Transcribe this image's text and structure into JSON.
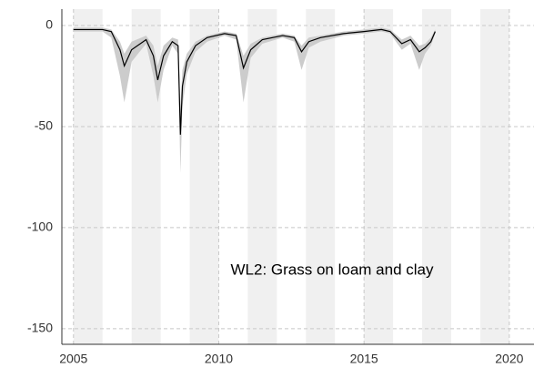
{
  "chart_data": {
    "type": "line",
    "annotation": "WL2: Grass on loam and clay",
    "x": [
      2005.0,
      2006.0,
      2006.3,
      2006.6,
      2006.75,
      2007.0,
      2007.5,
      2007.75,
      2007.9,
      2008.1,
      2008.4,
      2008.6,
      2008.68,
      2008.75,
      2008.9,
      2009.2,
      2009.6,
      2010.2,
      2010.6,
      2010.85,
      2011.1,
      2011.5,
      2012.2,
      2012.6,
      2012.85,
      2013.1,
      2013.5,
      2014.3,
      2015.0,
      2015.6,
      2015.9,
      2016.3,
      2016.6,
      2016.9,
      2017.1,
      2017.3,
      2017.45
    ],
    "series": [
      {
        "color": "#000000",
        "values": [
          -2,
          -2,
          -3,
          -12,
          -20,
          -12,
          -7,
          -15,
          -27,
          -15,
          -8,
          -10,
          -54,
          -30,
          -18,
          -10,
          -6,
          -4,
          -5,
          -21,
          -12,
          -7,
          -5,
          -6,
          -13,
          -8,
          -6,
          -4,
          -3,
          -2,
          -3,
          -9,
          -7,
          -13,
          -11,
          -8,
          -3
        ]
      }
    ],
    "band": {
      "color": "#cccccc",
      "lower": [
        -3,
        -3,
        -6,
        -25,
        -38,
        -18,
        -9,
        -25,
        -38,
        -22,
        -10,
        -14,
        -73,
        -40,
        -24,
        -13,
        -8,
        -5,
        -7,
        -38,
        -16,
        -9,
        -6,
        -8,
        -22,
        -11,
        -8,
        -5,
        -4,
        -3,
        -4,
        -12,
        -9,
        -22,
        -14,
        -10,
        -4
      ],
      "upper": [
        -1,
        -1,
        -2,
        -8,
        -14,
        -8,
        -5,
        -10,
        -20,
        -10,
        -6,
        -7,
        -40,
        -22,
        -14,
        -8,
        -5,
        -3,
        -4,
        -15,
        -9,
        -6,
        -4,
        -5,
        -10,
        -6,
        -5,
        -3,
        -2,
        -1,
        -2,
        -7,
        -5,
        -10,
        -9,
        -6,
        -2
      ]
    },
    "shaded_years": [
      2005,
      2007,
      2009,
      2011,
      2013,
      2015,
      2017,
      2019
    ],
    "shade_color": "#f0f0f0",
    "xlim": [
      2004.6,
      2020.85
    ],
    "xticks": [
      2005,
      2010,
      2015,
      2020
    ],
    "ylim": [
      -157.7,
      8.1
    ],
    "yticks": [
      -150,
      -100,
      -50,
      0
    ],
    "grid": true
  }
}
